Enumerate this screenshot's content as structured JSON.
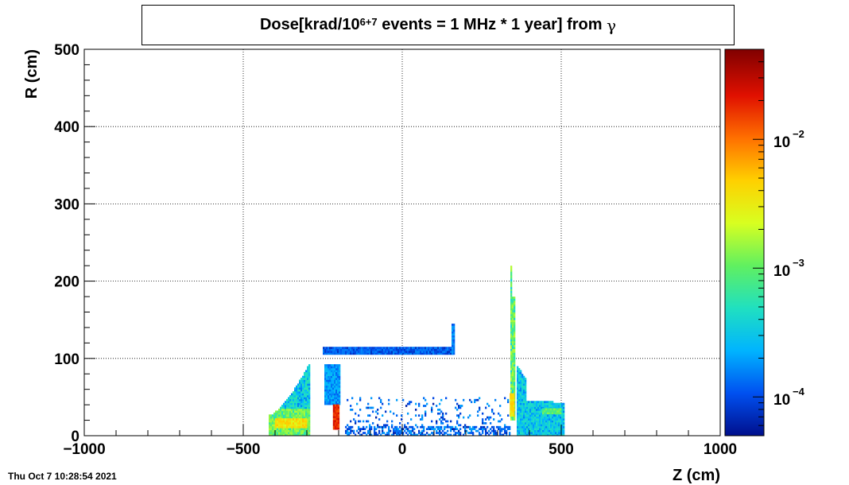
{
  "title": {
    "prefix": "Dose[krad/10",
    "superscript": "6+7",
    "suffix": " events = 1 MHz * 1 year] from ",
    "symbol": "γ"
  },
  "timestamp": "Thu Oct  7 10:28:54 2021",
  "chart_data": {
    "type": "heatmap",
    "xlabel": "Z (cm)",
    "ylabel": "R (cm)",
    "xlim": [
      -1000,
      1000
    ],
    "ylim": [
      0,
      500
    ],
    "x_ticks": [
      -1000,
      -500,
      0,
      500,
      1000
    ],
    "x_tick_labels": [
      "−1000",
      "−500",
      "0",
      "500",
      "1000"
    ],
    "y_ticks": [
      0,
      100,
      200,
      300,
      400,
      500
    ],
    "y_tick_labels": [
      "0",
      "100",
      "200",
      "300",
      "400",
      "500"
    ],
    "grid": true,
    "colorbar": {
      "scale": "log",
      "range": [
        5e-05,
        0.05
      ],
      "tick_values": [
        0.0001,
        0.001,
        0.01
      ],
      "tick_bases": [
        "10",
        "10",
        "10"
      ],
      "tick_exponents": [
        "−4",
        "−3",
        "−2"
      ],
      "colors": [
        "#000f8c",
        "#0050f0",
        "#00b4ff",
        "#20e0c0",
        "#60f060",
        "#d8ff20",
        "#ffd000",
        "#ff7000",
        "#e01000",
        "#800000"
      ]
    },
    "regions": [
      {
        "zmin": -420,
        "zmax": -290,
        "rmin": 0,
        "rmax": 95,
        "shape": "cone-left",
        "level": 0.0003
      },
      {
        "zmin": -400,
        "zmax": -300,
        "rmin": 10,
        "rmax": 22,
        "shape": "rect",
        "level": 0.004
      },
      {
        "zmin": -245,
        "zmax": -195,
        "rmin": 40,
        "rmax": 92,
        "shape": "rect",
        "level": 0.0002
      },
      {
        "zmin": -218,
        "zmax": -200,
        "rmin": 8,
        "rmax": 40,
        "shape": "rect",
        "level": 0.02
      },
      {
        "zmin": -250,
        "zmax": 160,
        "rmin": 105,
        "rmax": 115,
        "shape": "rect",
        "level": 0.00012
      },
      {
        "zmin": 155,
        "zmax": 162,
        "rmin": 105,
        "rmax": 143,
        "shape": "rect",
        "level": 0.00015
      },
      {
        "zmin": 340,
        "zmax": 352,
        "rmin": 20,
        "rmax": 220,
        "shape": "spike",
        "level": 0.0008
      },
      {
        "zmin": 338,
        "zmax": 350,
        "rmin": 25,
        "rmax": 55,
        "shape": "rect",
        "level": 0.004
      },
      {
        "zmin": 360,
        "zmax": 510,
        "rmin": 0,
        "rmax": 90,
        "shape": "cone-right",
        "level": 0.0003
      },
      {
        "zmin": 440,
        "zmax": 500,
        "rmin": 28,
        "rmax": 34,
        "shape": "rect",
        "level": 0.001
      },
      {
        "zmin": -180,
        "zmax": 340,
        "rmin": 0,
        "rmax": 50,
        "shape": "scatter",
        "level": 0.0001
      }
    ]
  }
}
